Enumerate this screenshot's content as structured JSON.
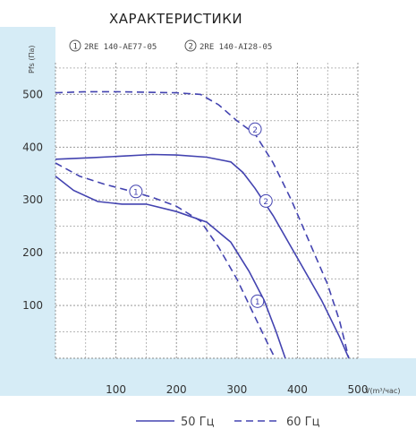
{
  "chart_data": {
    "type": "line",
    "title": "ХАРАКТЕРИСТИКИ",
    "subtitle_models": [
      {
        "marker": "1",
        "model": "2RE 140-AE77-05"
      },
      {
        "marker": "2",
        "model": "2RE 140-AI28-05"
      }
    ],
    "xlabel": "V(m³/час)",
    "ylabel": "Pfs (Па)",
    "xlim": [
      0,
      500
    ],
    "ylim": [
      0,
      560
    ],
    "x_ticks": [
      100,
      200,
      300,
      400,
      500
    ],
    "y_ticks": [
      100,
      200,
      300,
      400,
      500
    ],
    "grid": true,
    "legend": {
      "position": "bottom",
      "entries": [
        {
          "style": "solid",
          "label": "50 Гц"
        },
        {
          "style": "dashed",
          "label": "60 Гц"
        }
      ]
    },
    "colors": {
      "curve": "#4343b0",
      "grid": "#8a8a8a",
      "axis_band": "#d6ecf6"
    },
    "series": [
      {
        "model": "1",
        "freq": "50 Гц",
        "style": "solid",
        "points": [
          [
            0,
            345
          ],
          [
            30,
            318
          ],
          [
            70,
            297
          ],
          [
            110,
            292
          ],
          [
            150,
            292
          ],
          [
            200,
            278
          ],
          [
            250,
            258
          ],
          [
            290,
            220
          ],
          [
            320,
            165
          ],
          [
            345,
            110
          ],
          [
            365,
            50
          ],
          [
            380,
            0
          ]
        ]
      },
      {
        "model": "1",
        "freq": "60 Гц",
        "style": "dashed",
        "points": [
          [
            0,
            370
          ],
          [
            40,
            345
          ],
          [
            80,
            330
          ],
          [
            120,
            318
          ],
          [
            160,
            305
          ],
          [
            200,
            288
          ],
          [
            240,
            260
          ],
          [
            270,
            210
          ],
          [
            300,
            150
          ],
          [
            325,
            90
          ],
          [
            350,
            30
          ],
          [
            363,
            0
          ]
        ]
      },
      {
        "model": "2",
        "freq": "50 Гц",
        "style": "solid",
        "points": [
          [
            0,
            377
          ],
          [
            60,
            380
          ],
          [
            110,
            383
          ],
          [
            160,
            386
          ],
          [
            200,
            385
          ],
          [
            250,
            381
          ],
          [
            290,
            372
          ],
          [
            310,
            352
          ],
          [
            330,
            322
          ],
          [
            360,
            270
          ],
          [
            400,
            190
          ],
          [
            440,
            110
          ],
          [
            470,
            40
          ],
          [
            485,
            0
          ]
        ]
      },
      {
        "model": "2",
        "freq": "60 Гц",
        "style": "dashed",
        "points": [
          [
            0,
            503
          ],
          [
            50,
            505
          ],
          [
            100,
            505
          ],
          [
            150,
            504
          ],
          [
            200,
            503
          ],
          [
            240,
            500
          ],
          [
            270,
            480
          ],
          [
            300,
            450
          ],
          [
            330,
            425
          ],
          [
            360,
            370
          ],
          [
            390,
            300
          ],
          [
            420,
            220
          ],
          [
            450,
            140
          ],
          [
            470,
            70
          ],
          [
            485,
            0
          ]
        ]
      }
    ],
    "curve_markers": [
      {
        "label": "1",
        "x": 133,
        "y": 316
      },
      {
        "label": "1",
        "x": 334,
        "y": 108
      },
      {
        "label": "2",
        "x": 330,
        "y": 434
      },
      {
        "label": "2",
        "x": 348,
        "y": 298
      }
    ]
  }
}
